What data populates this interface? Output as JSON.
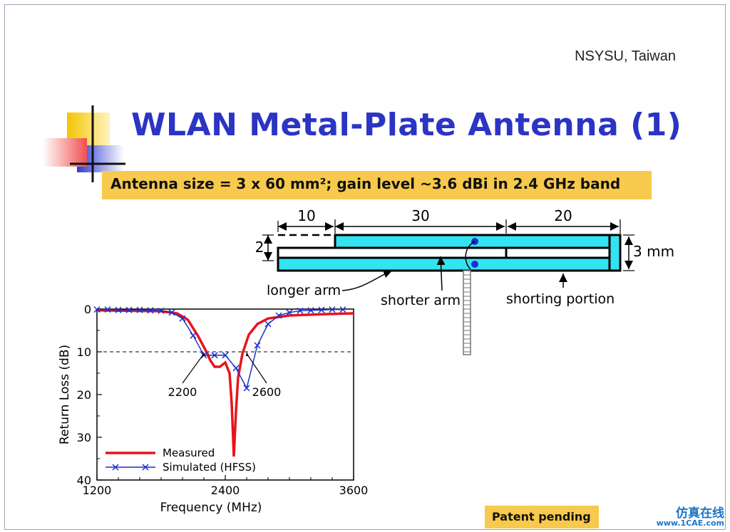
{
  "slide": {
    "org": "NSYSU, Taiwan",
    "title": "WLAN Metal-Plate Antenna (1)",
    "subtitle": "Antenna size = 3 x 60 mm²; gain level ~3.6 dBi in 2.4 GHz band",
    "patent": "Patent pending",
    "watermark_cn": "仿真在线",
    "watermark_url": "www.1CAE.com"
  },
  "diagram": {
    "dim_left": "10",
    "dim_mid": "30",
    "dim_right": "20",
    "dim_gap": "2",
    "dim_height": "3 mm",
    "label_longer": "longer arm",
    "label_shorter": "shorter arm",
    "label_shorting": "shorting portion",
    "fill_color": "#33e3f0"
  },
  "chart_data": {
    "type": "line",
    "xlabel": "Frequency (MHz)",
    "ylabel": "Return Loss (dB)",
    "xlim": [
      1200,
      3600
    ],
    "ylim": [
      0,
      40
    ],
    "y_inverted": true,
    "x_ticks": [
      "1200",
      "2400",
      "3600"
    ],
    "y_ticks": [
      "0",
      "10",
      "20",
      "30",
      "40"
    ],
    "reference_line_y": 10,
    "annotations": [
      "2200",
      "2600"
    ],
    "annotation_x": [
      2200,
      2600
    ],
    "legend_position": "bottom-left",
    "series": [
      {
        "name": "Measured",
        "color": "#e8141c",
        "x": [
          1200,
          1500,
          1800,
          1950,
          2050,
          2150,
          2230,
          2260,
          2300,
          2350,
          2400,
          2440,
          2460,
          2480,
          2500,
          2520,
          2560,
          2620,
          2700,
          2800,
          3000,
          3300,
          3600
        ],
        "y": [
          0.3,
          0.4,
          0.5,
          1.0,
          2.5,
          6.5,
          10.3,
          12.0,
          13.5,
          13.5,
          12.5,
          15.0,
          22.0,
          34.5,
          24.0,
          16.0,
          10.5,
          6.0,
          3.5,
          2.2,
          1.5,
          1.2,
          1.0
        ]
      },
      {
        "name": "Simulated (HFSS)",
        "color": "#1e2fc8",
        "x": [
          1200,
          1300,
          1400,
          1500,
          1600,
          1700,
          1800,
          1900,
          2000,
          2100,
          2200,
          2300,
          2400,
          2500,
          2600,
          2700,
          2800,
          2900,
          3000,
          3100,
          3200,
          3300,
          3400,
          3500
        ],
        "y": [
          0.1,
          0.1,
          0.2,
          0.2,
          0.2,
          0.3,
          0.4,
          0.8,
          2.2,
          6.2,
          10.8,
          10.8,
          10.8,
          13.8,
          18.5,
          8.5,
          3.5,
          1.5,
          0.8,
          0.4,
          0.3,
          0.2,
          0.1,
          0.1
        ]
      }
    ]
  }
}
